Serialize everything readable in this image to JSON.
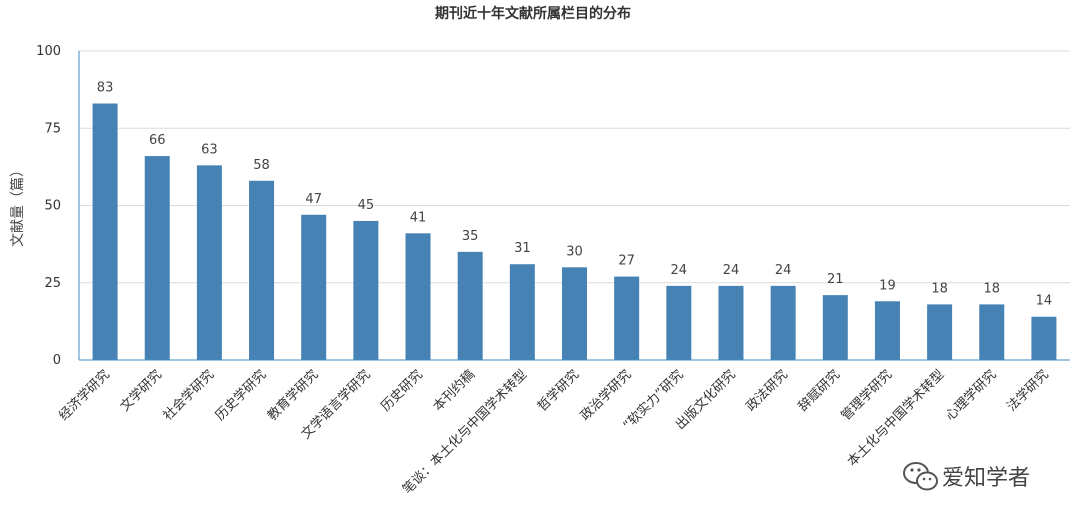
{
  "chart_data": {
    "type": "bar",
    "title": "期刊近十年文献所属栏目的分布",
    "ylabel": "文献量（篇）",
    "xlabel": "",
    "ylim": [
      0,
      100
    ],
    "yticks": [
      0,
      25,
      50,
      75,
      100
    ],
    "grid": true,
    "bar_color": "#4682b4",
    "categories": [
      "经济学研究",
      "文学研究",
      "社会学研究",
      "历史学研究",
      "教育学研究",
      "文学语言学研究",
      "历史研究",
      "本刊约稿",
      "笔谈：本土化与中国学术转型",
      "哲学研究",
      "政治学研究",
      "“软实力”研究",
      "出版文化研究",
      "政法研究",
      "辞赋研究",
      "管理学研究",
      "本土化与中国学术转型",
      "心理学研究",
      "法学研究"
    ],
    "values": [
      83,
      66,
      63,
      58,
      47,
      45,
      41,
      35,
      31,
      30,
      27,
      24,
      24,
      24,
      21,
      19,
      18,
      18,
      14
    ]
  },
  "watermark": {
    "text": "爱知学者",
    "icon": "wechat-icon"
  }
}
